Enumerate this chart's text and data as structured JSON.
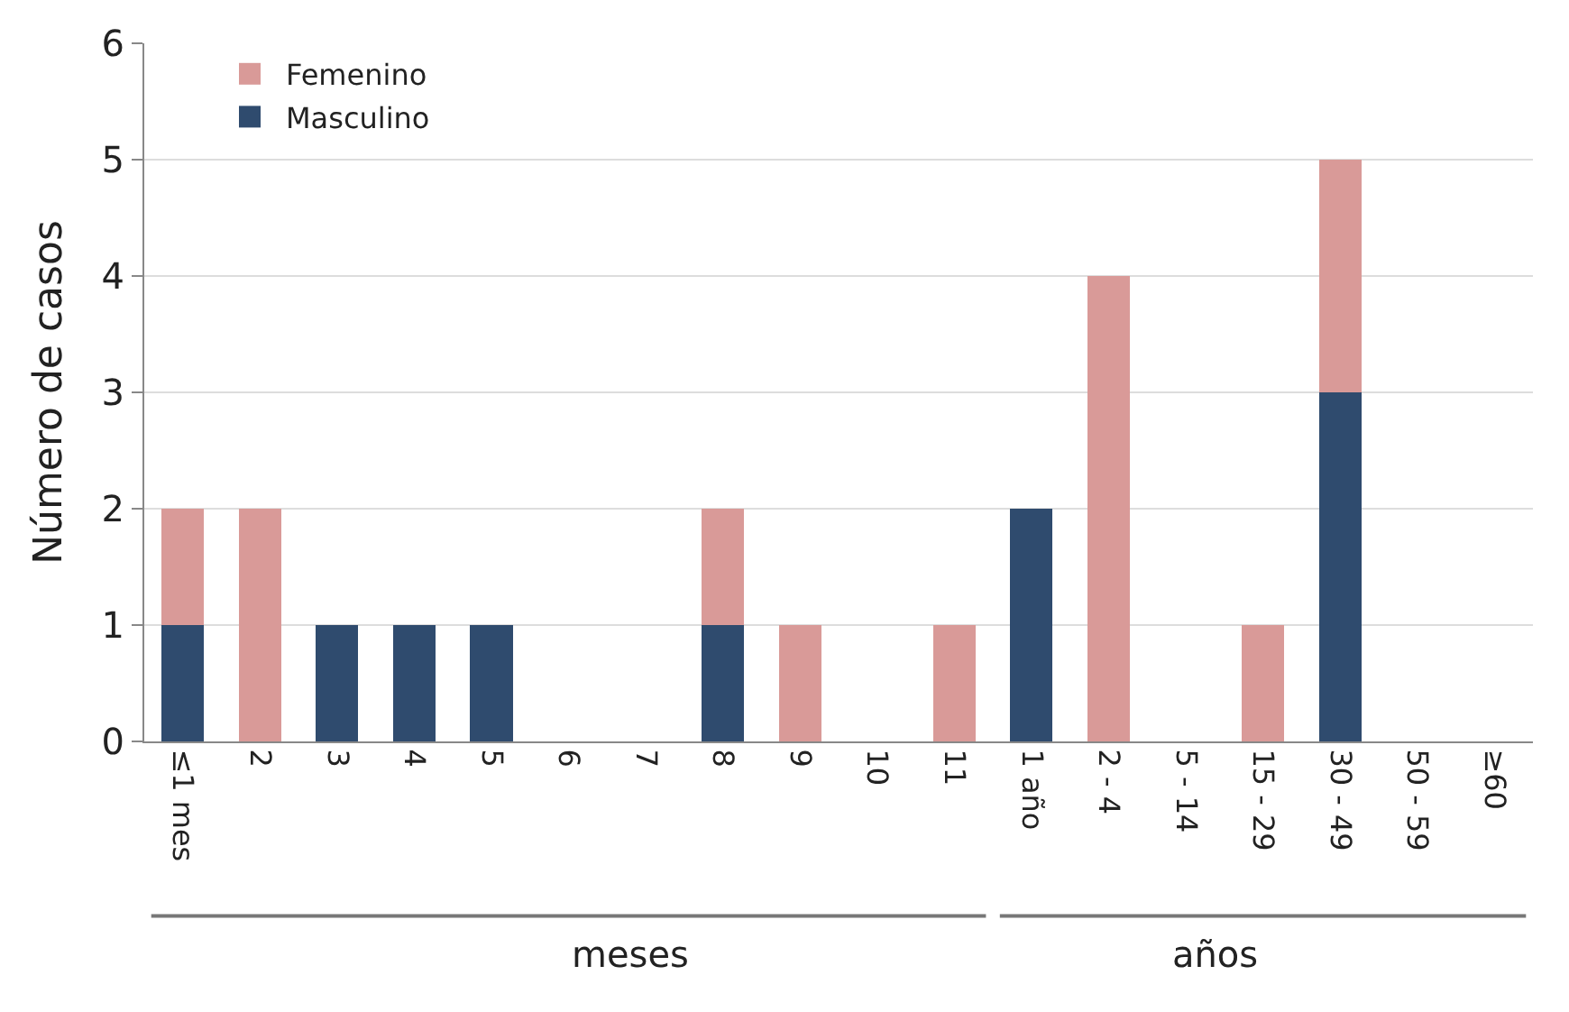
{
  "chart_data": {
    "type": "bar",
    "stacked": true,
    "ylabel": "Número de casos",
    "categories": [
      "≤1 mes",
      "2",
      "3",
      "4",
      "5",
      "6",
      "7",
      "8",
      "9",
      "10",
      "11",
      "1 año",
      "2 - 4",
      "5 - 14",
      "15 - 29",
      "30 - 49",
      "50 - 59",
      "≥60"
    ],
    "series": [
      {
        "name": "Masculino",
        "color": "#2f4b6e",
        "values": [
          1,
          0,
          1,
          1,
          1,
          0,
          0,
          1,
          0,
          0,
          0,
          2,
          0,
          0,
          0,
          3,
          0,
          0
        ]
      },
      {
        "name": "Femenino",
        "color": "#d99a98",
        "values": [
          1,
          2,
          0,
          0,
          0,
          0,
          0,
          1,
          1,
          0,
          1,
          0,
          4,
          0,
          1,
          2,
          0,
          0
        ]
      }
    ],
    "ylim": [
      0,
      6
    ],
    "yticks": [
      0,
      1,
      2,
      3,
      4,
      5,
      6
    ],
    "grid": "y",
    "legend": "top left",
    "annotations": [
      "meses",
      "años"
    ]
  }
}
